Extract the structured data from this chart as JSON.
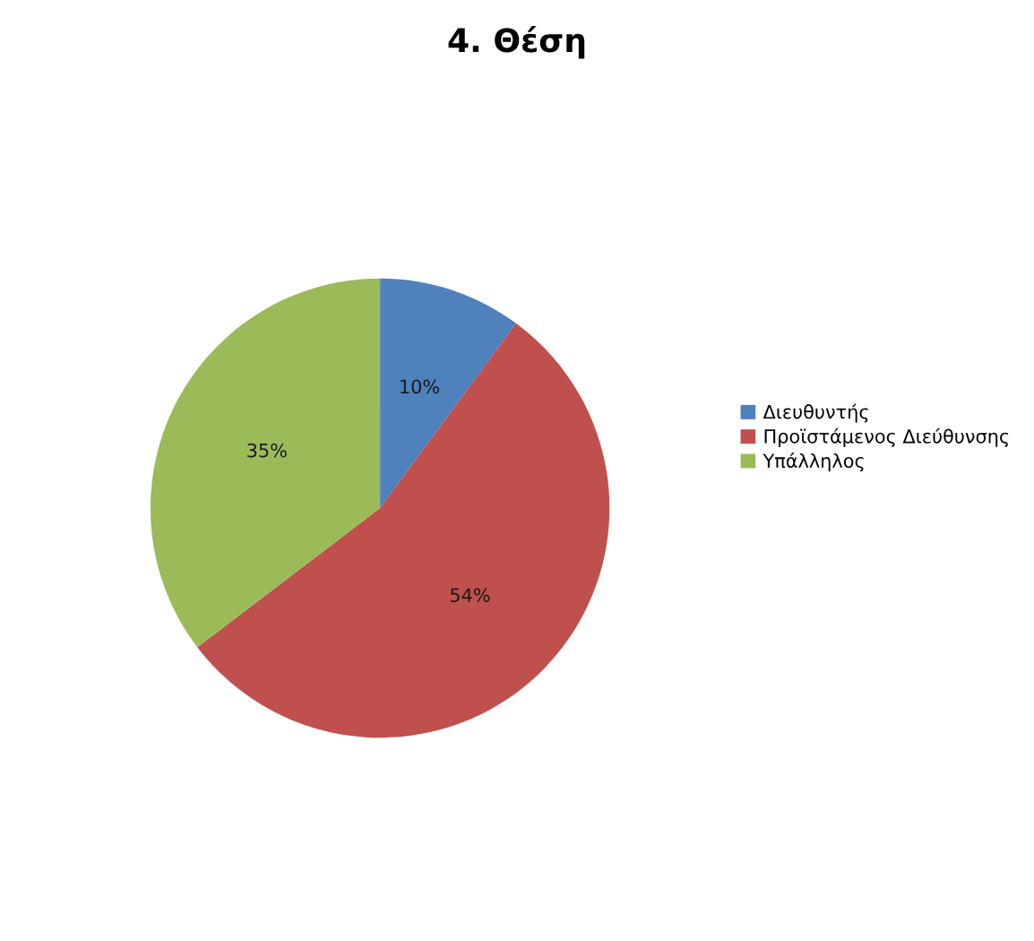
{
  "chart_data": {
    "type": "pie",
    "title": "4. Θέση",
    "categories": [
      "Διευθυντής",
      "Προϊστάμενος Διεύθυνσης",
      "Υπάλληλος"
    ],
    "values": [
      10,
      54,
      35
    ],
    "colors": [
      "#4f81bd",
      "#c0504d",
      "#9bbb59"
    ],
    "value_labels": [
      "10%",
      "54%",
      "35%"
    ],
    "legend": "right"
  }
}
